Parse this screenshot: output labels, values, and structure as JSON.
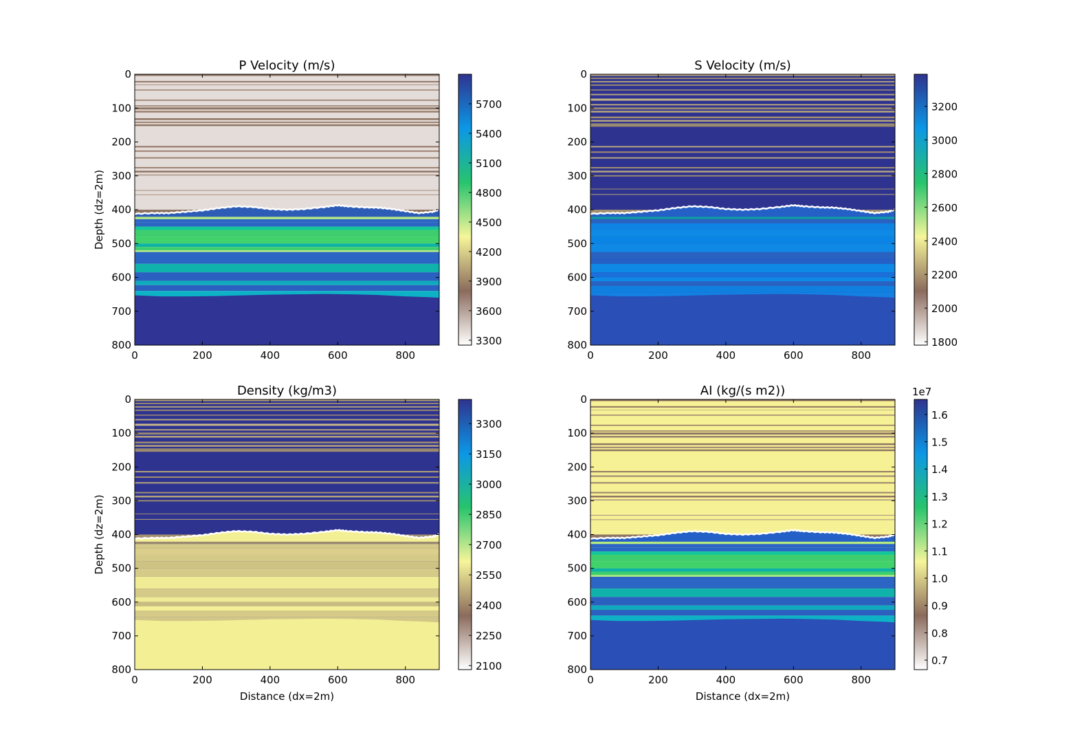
{
  "figure": {
    "layout": "2x2 grid of seismic property panels with colorbars"
  },
  "chart_data": [
    {
      "type": "heatmap",
      "title": "P Velocity (m/s)",
      "xlabel": "",
      "ylabel": "Depth (dz=2m)",
      "xlim": [
        0,
        900
      ],
      "ylim": [
        800,
        0
      ],
      "xticks": [
        "0",
        "200",
        "400",
        "600",
        "800"
      ],
      "yticks": [
        "0",
        "100",
        "200",
        "300",
        "400",
        "500",
        "600",
        "700",
        "800"
      ],
      "colorbar": {
        "min": 3250,
        "max": 6000,
        "ticks": [
          "3300",
          "3600",
          "3900",
          "4200",
          "4500",
          "4800",
          "5100",
          "5400",
          "5700"
        ],
        "offset_label": ""
      },
      "upper_base": "#e4dcd8",
      "upper_bands": [
        [
          0,
          5,
          "#8e7462"
        ],
        [
          20,
          24,
          "#8e7462"
        ],
        [
          30,
          32,
          "#a8917f"
        ],
        [
          45,
          48,
          "#9a8070"
        ],
        [
          75,
          78,
          "#8e7462"
        ],
        [
          92,
          95,
          "#8e7462"
        ],
        [
          98,
          104,
          "#8e7462"
        ],
        [
          108,
          113,
          "#9a8070"
        ],
        [
          130,
          135,
          "#8e7462"
        ],
        [
          140,
          144,
          "#9a8070"
        ],
        [
          148,
          153,
          "#8e7462"
        ],
        [
          212,
          216,
          "#8e7462"
        ],
        [
          225,
          229,
          "#9a8070"
        ],
        [
          245,
          249,
          "#9a8070"
        ],
        [
          274,
          278,
          "#9a8070"
        ],
        [
          285,
          290,
          "#8e7462"
        ],
        [
          296,
          299,
          "#a8917f"
        ],
        [
          342,
          344,
          "#a8917f"
        ],
        [
          355,
          357,
          "#a8917f"
        ],
        [
          400,
          420,
          "#8e7462"
        ]
      ],
      "seafloor_color": "#2d5cb7",
      "lower_bands": [
        [
          420,
          428,
          "#b5ea80"
        ],
        [
          428,
          438,
          "#2b66c4"
        ],
        [
          438,
          450,
          "#2b66c4"
        ],
        [
          450,
          460,
          "#13c69b"
        ],
        [
          460,
          480,
          "#3fce6e"
        ],
        [
          480,
          500,
          "#42d26c"
        ],
        [
          500,
          510,
          "#0db2a4"
        ],
        [
          510,
          520,
          "#3fce6e"
        ],
        [
          520,
          525,
          "#b8ed85"
        ],
        [
          525,
          560,
          "#2b66c4"
        ],
        [
          560,
          585,
          "#10b3ac"
        ],
        [
          585,
          610,
          "#2b5fc0"
        ],
        [
          610,
          623,
          "#0faabd"
        ],
        [
          623,
          640,
          "#2b5fc0"
        ],
        [
          640,
          665,
          "#0db2c6"
        ]
      ],
      "basement_color": "#2f3495"
    },
    {
      "type": "heatmap",
      "title": "S Velocity (m/s)",
      "xlabel": "",
      "ylabel": "",
      "xlim": [
        0,
        900
      ],
      "ylim": [
        800,
        0
      ],
      "xticks": [
        "0",
        "200",
        "400",
        "600",
        "800"
      ],
      "yticks": [
        "0",
        "100",
        "200",
        "300",
        "400",
        "500",
        "600",
        "700",
        "800"
      ],
      "colorbar": {
        "min": 1780,
        "max": 3390,
        "ticks": [
          "1800",
          "2000",
          "2200",
          "2400",
          "2600",
          "2800",
          "3000",
          "3200"
        ],
        "offset_label": ""
      },
      "upper_base": "#2e3390",
      "upper_bands": [
        [
          0,
          5,
          "#b7a57c"
        ],
        [
          10,
          14,
          "#9a8a70"
        ],
        [
          20,
          24,
          "#b7a57c"
        ],
        [
          30,
          34,
          "#9a8a70"
        ],
        [
          45,
          48,
          "#a39070"
        ],
        [
          58,
          62,
          "#b7a57c"
        ],
        [
          72,
          78,
          "#c8b888"
        ],
        [
          88,
          92,
          "#b7a57c"
        ],
        [
          98,
          104,
          "#9a8a70"
        ],
        [
          108,
          113,
          "#b7a57c"
        ],
        [
          125,
          130,
          "#a39070"
        ],
        [
          135,
          140,
          "#b7a57c"
        ],
        [
          145,
          155,
          "#9a8a70"
        ],
        [
          212,
          216,
          "#b7a57c"
        ],
        [
          228,
          232,
          "#a39070"
        ],
        [
          245,
          249,
          "#b7a57c"
        ],
        [
          274,
          278,
          "#a39070"
        ],
        [
          285,
          290,
          "#b7a57c"
        ],
        [
          298,
          302,
          "#9a8a70"
        ],
        [
          338,
          340,
          "#a39070"
        ],
        [
          354,
          356,
          "#b7a57c"
        ],
        [
          400,
          420,
          "#a39070"
        ]
      ],
      "seafloor_color": "#2560c6",
      "lower_bands": [
        [
          420,
          428,
          "#0f9fa5"
        ],
        [
          428,
          440,
          "#2a62c2"
        ],
        [
          440,
          460,
          "#0f83e3"
        ],
        [
          460,
          480,
          "#0f89e6"
        ],
        [
          480,
          500,
          "#0b85e5"
        ],
        [
          500,
          525,
          "#0f89e6"
        ],
        [
          525,
          545,
          "#2a62c2"
        ],
        [
          545,
          560,
          "#2560c6"
        ],
        [
          560,
          585,
          "#0f89e6"
        ],
        [
          585,
          600,
          "#1a6fd8"
        ],
        [
          600,
          612,
          "#0f89e6"
        ],
        [
          612,
          625,
          "#2a62c2"
        ],
        [
          625,
          645,
          "#0f80e0"
        ],
        [
          645,
          665,
          "#1380e2"
        ]
      ],
      "basement_color": "#2a4fb7"
    },
    {
      "type": "heatmap",
      "title": "Density (kg/m3)",
      "xlabel": "Distance (dx=2m)",
      "ylabel": "Depth (dz=2m)",
      "xlim": [
        0,
        900
      ],
      "ylim": [
        800,
        0
      ],
      "xticks": [
        "0",
        "200",
        "400",
        "600",
        "800"
      ],
      "yticks": [
        "0",
        "100",
        "200",
        "300",
        "400",
        "500",
        "600",
        "700",
        "800"
      ],
      "colorbar": {
        "min": 2080,
        "max": 3420,
        "ticks": [
          "2100",
          "2250",
          "2400",
          "2550",
          "2700",
          "2850",
          "3000",
          "3150",
          "3300"
        ],
        "offset_label": ""
      },
      "upper_base": "#2e3390",
      "upper_bands": [
        [
          0,
          5,
          "#b7a57c"
        ],
        [
          10,
          14,
          "#9a8a70"
        ],
        [
          20,
          24,
          "#b7a57c"
        ],
        [
          30,
          34,
          "#9a8a70"
        ],
        [
          45,
          48,
          "#a39070"
        ],
        [
          58,
          62,
          "#b7a57c"
        ],
        [
          72,
          78,
          "#c8b888"
        ],
        [
          88,
          92,
          "#b7a57c"
        ],
        [
          98,
          104,
          "#9a8a70"
        ],
        [
          108,
          113,
          "#b7a57c"
        ],
        [
          125,
          130,
          "#a39070"
        ],
        [
          135,
          140,
          "#b7a57c"
        ],
        [
          145,
          155,
          "#9a8a70"
        ],
        [
          212,
          216,
          "#b7a57c"
        ],
        [
          228,
          232,
          "#a39070"
        ],
        [
          245,
          249,
          "#b7a57c"
        ],
        [
          274,
          278,
          "#a39070"
        ],
        [
          285,
          290,
          "#b7a57c"
        ],
        [
          298,
          302,
          "#9a8a70"
        ],
        [
          338,
          340,
          "#a39070"
        ],
        [
          354,
          356,
          "#b7a57c"
        ],
        [
          400,
          420,
          "#a39070"
        ]
      ],
      "seafloor_color": "#f3ef95",
      "lower_bands": [
        [
          420,
          428,
          "#9a8a70"
        ],
        [
          428,
          440,
          "#d6ca88"
        ],
        [
          440,
          460,
          "#dccf8c"
        ],
        [
          460,
          480,
          "#d6ca88"
        ],
        [
          480,
          500,
          "#cfc383"
        ],
        [
          500,
          525,
          "#d6ca88"
        ],
        [
          525,
          560,
          "#f0eb95"
        ],
        [
          560,
          585,
          "#d6ca88"
        ],
        [
          585,
          600,
          "#f0eb95"
        ],
        [
          600,
          612,
          "#c8bc80"
        ],
        [
          612,
          625,
          "#f5ef98"
        ],
        [
          625,
          645,
          "#d6ca88"
        ],
        [
          645,
          665,
          "#d3c788"
        ]
      ],
      "basement_color": "#f3ef95"
    },
    {
      "type": "heatmap",
      "title": "AI (kg/(s m2))",
      "xlabel": "Distance (dx=2m)",
      "ylabel": "",
      "xlim": [
        0,
        900
      ],
      "ylim": [
        800,
        0
      ],
      "xticks": [
        "0",
        "200",
        "400",
        "600",
        "800"
      ],
      "yticks": [
        "0",
        "100",
        "200",
        "300",
        "400",
        "500",
        "600",
        "700",
        "800"
      ],
      "colorbar": {
        "min": 0.665,
        "max": 1.655,
        "ticks": [
          "0.7",
          "0.8",
          "0.9",
          "1.0",
          "1.1",
          "1.2",
          "1.3",
          "1.4",
          "1.5",
          "1.6"
        ],
        "offset_label": "1e7"
      },
      "upper_base": "#f6f195",
      "upper_bands": [
        [
          0,
          5,
          "#8e7462"
        ],
        [
          20,
          24,
          "#8e7462"
        ],
        [
          30,
          32,
          "#c8b888"
        ],
        [
          45,
          48,
          "#9a8070"
        ],
        [
          75,
          78,
          "#8e7462"
        ],
        [
          92,
          95,
          "#8e7462"
        ],
        [
          98,
          104,
          "#8e7462"
        ],
        [
          108,
          113,
          "#9a8070"
        ],
        [
          130,
          135,
          "#8e7462"
        ],
        [
          140,
          144,
          "#9a8070"
        ],
        [
          148,
          153,
          "#8e7462"
        ],
        [
          212,
          216,
          "#8e7462"
        ],
        [
          225,
          229,
          "#9a8070"
        ],
        [
          245,
          249,
          "#9a8070"
        ],
        [
          274,
          278,
          "#9a8070"
        ],
        [
          285,
          290,
          "#8e7462"
        ],
        [
          296,
          299,
          "#a8917f"
        ],
        [
          342,
          344,
          "#a8917f"
        ],
        [
          355,
          357,
          "#a8917f"
        ],
        [
          400,
          420,
          "#8e7462"
        ]
      ],
      "seafloor_color": "#2560c6",
      "lower_bands": [
        [
          420,
          428,
          "#b5ea80"
        ],
        [
          428,
          438,
          "#2b66c4"
        ],
        [
          438,
          450,
          "#2b66c4"
        ],
        [
          450,
          460,
          "#13c69b"
        ],
        [
          460,
          480,
          "#3fce6e"
        ],
        [
          480,
          500,
          "#42d26c"
        ],
        [
          500,
          510,
          "#0db2a4"
        ],
        [
          510,
          520,
          "#3fce6e"
        ],
        [
          520,
          525,
          "#b8ed85"
        ],
        [
          525,
          560,
          "#2b66c4"
        ],
        [
          560,
          585,
          "#10b3ac"
        ],
        [
          585,
          610,
          "#2b5fc0"
        ],
        [
          610,
          623,
          "#0faabd"
        ],
        [
          623,
          640,
          "#2b5fc0"
        ],
        [
          640,
          665,
          "#0db2c6"
        ]
      ],
      "basement_color": "#2a4fb7"
    }
  ],
  "colormap": {
    "stops": [
      "#ffffff",
      "#8b6b5c",
      "#f6f59a",
      "#27c46d",
      "#0c97e6",
      "#2f338e"
    ]
  },
  "boundaries": {
    "seafloor_profile": [
      [
        0,
        412
      ],
      [
        60,
        410
      ],
      [
        100,
        410
      ],
      [
        150,
        406
      ],
      [
        200,
        402
      ],
      [
        250,
        395
      ],
      [
        300,
        390
      ],
      [
        350,
        392
      ],
      [
        400,
        398
      ],
      [
        450,
        400
      ],
      [
        500,
        398
      ],
      [
        560,
        392
      ],
      [
        600,
        387
      ],
      [
        630,
        390
      ],
      [
        680,
        393
      ],
      [
        720,
        394
      ],
      [
        760,
        398
      ],
      [
        800,
        404
      ],
      [
        840,
        410
      ],
      [
        880,
        406
      ],
      [
        900,
        400
      ]
    ],
    "basement_profile": [
      [
        0,
        653
      ],
      [
        80,
        656
      ],
      [
        160,
        656
      ],
      [
        240,
        655
      ],
      [
        320,
        653
      ],
      [
        400,
        651
      ],
      [
        480,
        650
      ],
      [
        560,
        649
      ],
      [
        640,
        650
      ],
      [
        720,
        652
      ],
      [
        800,
        656
      ],
      [
        860,
        658
      ],
      [
        900,
        660
      ]
    ]
  }
}
